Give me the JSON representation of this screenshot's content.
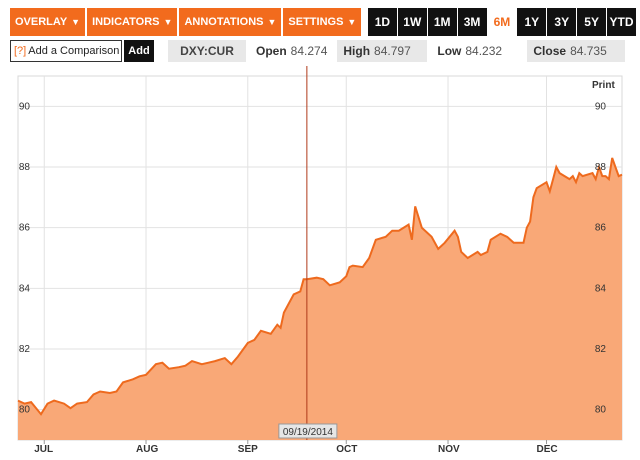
{
  "toolbar": {
    "menus": [
      {
        "label": "OVERLAY",
        "caret": "▼"
      },
      {
        "label": "INDICATORS",
        "caret": "▼"
      },
      {
        "label": "ANNOTATIONS",
        "caret": "▼"
      },
      {
        "label": "SETTINGS",
        "caret": "▼"
      }
    ],
    "ranges": [
      "1D",
      "1W",
      "1M",
      "3M",
      "6M",
      "1Y",
      "3Y",
      "5Y",
      "YTD"
    ],
    "active_range": "6M"
  },
  "infobar": {
    "comparison_icon": "[?]",
    "comparison_label": "Add a Comparison",
    "add_label": "Add",
    "symbol": "DXY:CUR",
    "open_label": "Open",
    "open_value": "84.274",
    "high_label": "High",
    "high_value": "84.797",
    "low_label": "Low",
    "low_value": "84.232",
    "close_label": "Close",
    "close_value": "84.735"
  },
  "chart_print_label": "Print",
  "crosshair_date": "09/19/2014",
  "colors": {
    "accent": "#f26b1d",
    "area_fill": "#f9a877",
    "line": "#ee6a1e",
    "crosshair": "#b03a1a"
  },
  "chart_data": {
    "type": "area",
    "ylim": [
      79.0,
      91.0
    ],
    "yticks": [
      80,
      82,
      84,
      86,
      88,
      90
    ],
    "xlim": [
      "2014-06-23",
      "2014-12-24"
    ],
    "month_ticks": [
      {
        "label": "JUL",
        "date": "2014-07-01"
      },
      {
        "label": "AUG",
        "date": "2014-08-01"
      },
      {
        "label": "SEP",
        "date": "2014-09-01"
      },
      {
        "label": "OCT",
        "date": "2014-10-01"
      },
      {
        "label": "NOV",
        "date": "2014-11-01"
      },
      {
        "label": "DEC",
        "date": "2014-12-01"
      }
    ],
    "grid": true,
    "points": [
      [
        "2014-06-23",
        80.3
      ],
      [
        "2014-06-25",
        80.2
      ],
      [
        "2014-06-27",
        80.25
      ],
      [
        "2014-06-30",
        79.85
      ],
      [
        "2014-07-02",
        80.2
      ],
      [
        "2014-07-04",
        80.3
      ],
      [
        "2014-07-07",
        80.2
      ],
      [
        "2014-07-09",
        80.05
      ],
      [
        "2014-07-11",
        80.2
      ],
      [
        "2014-07-14",
        80.25
      ],
      [
        "2014-07-16",
        80.5
      ],
      [
        "2014-07-18",
        80.6
      ],
      [
        "2014-07-21",
        80.55
      ],
      [
        "2014-07-23",
        80.6
      ],
      [
        "2014-07-25",
        80.9
      ],
      [
        "2014-07-28",
        81.0
      ],
      [
        "2014-07-30",
        81.1
      ],
      [
        "2014-08-01",
        81.15
      ],
      [
        "2014-08-04",
        81.5
      ],
      [
        "2014-08-06",
        81.55
      ],
      [
        "2014-08-08",
        81.35
      ],
      [
        "2014-08-11",
        81.4
      ],
      [
        "2014-08-13",
        81.45
      ],
      [
        "2014-08-15",
        81.6
      ],
      [
        "2014-08-18",
        81.5
      ],
      [
        "2014-08-20",
        81.55
      ],
      [
        "2014-08-22",
        81.6
      ],
      [
        "2014-08-25",
        81.7
      ],
      [
        "2014-08-27",
        81.5
      ],
      [
        "2014-08-29",
        81.75
      ],
      [
        "2014-09-01",
        82.2
      ],
      [
        "2014-09-03",
        82.3
      ],
      [
        "2014-09-05",
        82.6
      ],
      [
        "2014-09-08",
        82.5
      ],
      [
        "2014-09-10",
        82.8
      ],
      [
        "2014-09-11",
        82.7
      ],
      [
        "2014-09-12",
        83.2
      ],
      [
        "2014-09-15",
        83.8
      ],
      [
        "2014-09-17",
        83.9
      ],
      [
        "2014-09-18",
        84.3
      ],
      [
        "2014-09-19",
        84.3
      ],
      [
        "2014-09-22",
        84.35
      ],
      [
        "2014-09-24",
        84.3
      ],
      [
        "2014-09-26",
        84.1
      ],
      [
        "2014-09-29",
        84.2
      ],
      [
        "2014-10-01",
        84.4
      ],
      [
        "2014-10-02",
        84.7
      ],
      [
        "2014-10-03",
        84.75
      ],
      [
        "2014-10-06",
        84.7
      ],
      [
        "2014-10-08",
        85.0
      ],
      [
        "2014-10-10",
        85.6
      ],
      [
        "2014-10-13",
        85.7
      ],
      [
        "2014-10-15",
        85.9
      ],
      [
        "2014-10-17",
        85.9
      ],
      [
        "2014-10-20",
        86.1
      ],
      [
        "2014-10-21",
        85.6
      ],
      [
        "2014-10-22",
        86.7
      ],
      [
        "2014-10-24",
        86.0
      ],
      [
        "2014-10-27",
        85.7
      ],
      [
        "2014-10-29",
        85.3
      ],
      [
        "2014-10-31",
        85.5
      ],
      [
        "2014-11-03",
        85.9
      ],
      [
        "2014-11-04",
        85.7
      ],
      [
        "2014-11-05",
        85.2
      ],
      [
        "2014-11-07",
        85.0
      ],
      [
        "2014-11-10",
        85.2
      ],
      [
        "2014-11-11",
        85.1
      ],
      [
        "2014-11-13",
        85.2
      ],
      [
        "2014-11-14",
        85.6
      ],
      [
        "2014-11-17",
        85.8
      ],
      [
        "2014-11-19",
        85.7
      ],
      [
        "2014-11-21",
        85.5
      ],
      [
        "2014-11-24",
        85.5
      ],
      [
        "2014-11-25",
        86.0
      ],
      [
        "2014-11-26",
        86.2
      ],
      [
        "2014-11-27",
        87.0
      ],
      [
        "2014-11-28",
        87.3
      ],
      [
        "2014-12-01",
        87.5
      ],
      [
        "2014-12-02",
        87.2
      ],
      [
        "2014-12-03",
        87.6
      ],
      [
        "2014-12-04",
        88.0
      ],
      [
        "2014-12-05",
        87.8
      ],
      [
        "2014-12-08",
        87.6
      ],
      [
        "2014-12-09",
        87.7
      ],
      [
        "2014-12-10",
        87.5
      ],
      [
        "2014-12-11",
        87.8
      ],
      [
        "2014-12-12",
        87.7
      ],
      [
        "2014-12-15",
        87.8
      ],
      [
        "2014-12-16",
        87.6
      ],
      [
        "2014-12-17",
        88.0
      ],
      [
        "2014-12-18",
        87.7
      ],
      [
        "2014-12-19",
        87.7
      ],
      [
        "2014-12-20",
        87.6
      ],
      [
        "2014-12-21",
        88.3
      ],
      [
        "2014-12-22",
        88.0
      ],
      [
        "2014-12-23",
        87.7
      ],
      [
        "2014-12-24",
        87.75
      ]
    ]
  }
}
